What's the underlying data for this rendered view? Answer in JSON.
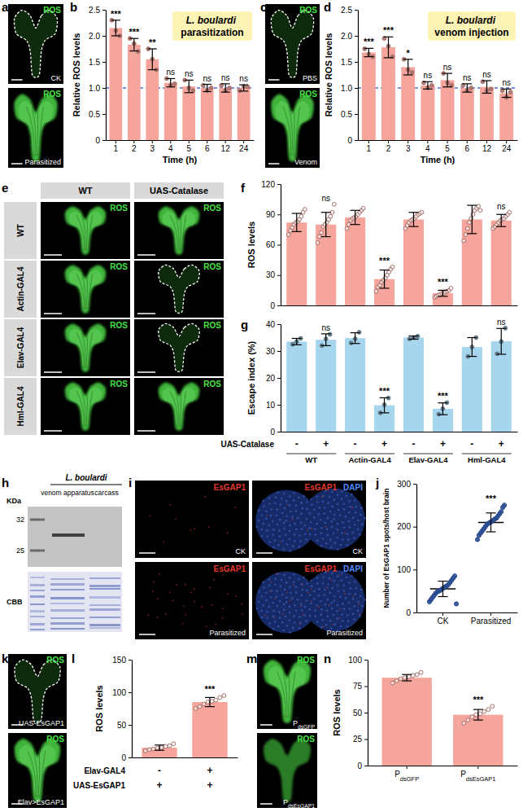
{
  "chart_data": [
    {
      "type": "bar",
      "annotation": "L. boulardi parasitization",
      "xlabel": "Time (h)",
      "ylabel": "Relative ROS levels",
      "categories": [
        "1",
        "2",
        "3",
        "4",
        "5",
        "6",
        "12",
        "24"
      ],
      "values": [
        2.15,
        1.83,
        1.55,
        1.1,
        1.03,
        1.0,
        1.0,
        1.0
      ],
      "errors": [
        0.15,
        0.12,
        0.2,
        0.08,
        0.12,
        0.07,
        0.08,
        0.06
      ],
      "points": [
        [
          2.3,
          2.1,
          2.0
        ],
        [
          1.95,
          1.85,
          1.7
        ],
        [
          1.75,
          1.55,
          1.35
        ],
        [
          1.18,
          1.05,
          1.08
        ],
        [
          1.15,
          1.0,
          0.95
        ],
        [
          1.05,
          0.95,
          1.0
        ],
        [
          1.05,
          0.95,
          1.0
        ],
        [
          0.95,
          1.03,
          1.02
        ]
      ],
      "significance": [
        "***",
        "***",
        "**",
        "ns",
        "ns",
        "ns",
        "ns",
        "ns"
      ],
      "reference_line": 1,
      "color": "#f6a59c",
      "ylim": [
        0,
        2.5
      ],
      "yticks": [
        0,
        0.5,
        {
          "value": 1,
          "label": "1.0"
        },
        1.5,
        {
          "value": 2,
          "label": "2.0"
        },
        2.5
      ]
    },
    {
      "type": "bar",
      "annotation": "L. boulardi venom injection",
      "xlabel": "Time (h)",
      "ylabel": "Relative ROS levels",
      "categories": [
        "1",
        "2",
        "3",
        "4",
        "5",
        "6",
        "12",
        "24"
      ],
      "values": [
        1.68,
        1.78,
        1.4,
        1.05,
        1.15,
        1.0,
        1.02,
        0.9
      ],
      "errors": [
        0.08,
        0.2,
        0.15,
        0.07,
        0.13,
        0.08,
        0.12,
        0.08
      ],
      "points": [
        [
          1.75,
          1.65,
          1.6
        ],
        [
          1.95,
          1.8,
          1.6
        ],
        [
          1.55,
          1.35,
          1.3
        ],
        [
          1.1,
          1.0,
          1.05
        ],
        [
          1.28,
          1.1,
          1.05
        ],
        [
          1.05,
          0.95,
          1.0
        ],
        [
          1.12,
          0.95,
          0.98
        ],
        [
          0.95,
          0.82,
          0.92
        ]
      ],
      "significance": [
        "***",
        "***",
        "*",
        "ns",
        "ns",
        "ns",
        "ns",
        "ns"
      ],
      "reference_line": 1,
      "color": "#f6a59c",
      "ylim": [
        0,
        2.5
      ],
      "yticks": [
        0,
        0.5,
        {
          "value": 1,
          "label": "1.0"
        },
        1.5,
        {
          "value": 2,
          "label": "2.0"
        },
        2.5
      ]
    },
    {
      "type": "bar",
      "ylabel": "ROS levels",
      "categories": [
        null,
        null,
        null,
        null,
        null,
        null,
        null,
        null
      ],
      "values": [
        82,
        80,
        87,
        26,
        85,
        12,
        85,
        84
      ],
      "errors": [
        9,
        12,
        7,
        9,
        7,
        3,
        14,
        6
      ],
      "points": [
        [
          70,
          74,
          77,
          80,
          82,
          83,
          85,
          88,
          92,
          95
        ],
        [
          62,
          68,
          72,
          78,
          80,
          82,
          85,
          88,
          92,
          100
        ],
        [
          76,
          80,
          84,
          86,
          87,
          88,
          90,
          92,
          94,
          96
        ],
        [
          14,
          18,
          20,
          23,
          25,
          27,
          30,
          33,
          36,
          38
        ],
        [
          76,
          79,
          82,
          84,
          85,
          86,
          88,
          90,
          91,
          92
        ],
        [
          8,
          9,
          10,
          11,
          12,
          12,
          13,
          14,
          15,
          17
        ],
        [
          64,
          70,
          76,
          82,
          86,
          90,
          94,
          96,
          98,
          94
        ],
        [
          76,
          78,
          80,
          82,
          84,
          85,
          86,
          88,
          90,
          92
        ]
      ],
      "significance": [
        null,
        "ns",
        null,
        "***",
        null,
        "***",
        null,
        "ns"
      ],
      "color": "#f6a59c",
      "ylim": [
        0,
        120
      ],
      "yticks": [
        0,
        30,
        60,
        90,
        120
      ]
    },
    {
      "type": "bar",
      "ylabel": "Escape index (%)",
      "categories": [
        null,
        null,
        null,
        null,
        null,
        null,
        null,
        null
      ],
      "values": [
        33.5,
        34.2,
        34.8,
        9.8,
        35,
        8.5,
        31.5,
        33.6
      ],
      "errors": [
        1.2,
        2.2,
        2.0,
        2.8,
        0.6,
        2.2,
        3.5,
        4.8
      ],
      "points": [
        [
          32.5,
          33.5,
          34.7
        ],
        [
          32,
          34.5,
          36.2
        ],
        [
          33,
          34.5,
          37
        ],
        [
          7,
          10,
          12.5
        ],
        [
          34.5,
          35,
          35.5
        ],
        [
          6.5,
          8.5,
          10.8
        ],
        [
          28,
          31.5,
          35
        ],
        [
          29,
          33.5,
          38.5
        ]
      ],
      "significance": [
        null,
        "ns",
        null,
        "***",
        null,
        "***",
        null,
        "ns"
      ],
      "table": [
        {
          "name": "UAS-Catalase",
          "values": [
            "-",
            "+",
            "-",
            "+",
            "-",
            "+",
            "-",
            "+"
          ]
        }
      ],
      "groups": [
        "WT",
        "Actin-GAL4",
        "Elav-GAL4",
        "Hml-GAL4"
      ],
      "color": "#a6d6ee",
      "ylim": [
        0,
        40
      ],
      "yticks": [
        0,
        10,
        20,
        30,
        40
      ]
    },
    {
      "type": "dot",
      "ylabel": "Number of EsGAP1 spots/host brain",
      "categories": [
        "CK",
        "Parasitized"
      ],
      "values": [
        55,
        210
      ],
      "errors": [
        18,
        22
      ],
      "points": [
        [
          25,
          30,
          35,
          40,
          45,
          48,
          50,
          52,
          55,
          57,
          60,
          62,
          65,
          70,
          75,
          80,
          85,
          20
        ],
        [
          170,
          180,
          185,
          190,
          195,
          200,
          205,
          208,
          210,
          212,
          215,
          218,
          220,
          225,
          230,
          235,
          245,
          250
        ]
      ],
      "significance": [
        null,
        "***"
      ],
      "color": "#3d6fd6",
      "ylim": [
        0,
        300
      ],
      "yticks": [
        0,
        100,
        200,
        300
      ]
    },
    {
      "type": "bar",
      "ylabel": "ROS levels",
      "categories": [
        null,
        null
      ],
      "values": [
        15,
        85
      ],
      "errors": [
        4,
        7
      ],
      "points": [
        [
          10,
          12,
          13,
          14,
          15,
          17,
          18,
          21
        ],
        [
          75,
          78,
          82,
          85,
          86,
          88,
          92,
          95
        ]
      ],
      "significance": [
        null,
        "***"
      ],
      "table": [
        {
          "name": "Elav-GAL4",
          "values": [
            "-",
            "+"
          ]
        },
        {
          "name": "UAS-EsGAP1",
          "values": [
            "+",
            "+"
          ]
        }
      ],
      "color": "#f6a59c",
      "ylim": [
        0,
        150
      ],
      "yticks": [
        0,
        50,
        100,
        150
      ]
    },
    {
      "type": "bar",
      "ylabel": "ROS levels",
      "categories": [
        "PdsGFP",
        "PdsEsGAP1"
      ],
      "values": [
        83,
        48
      ],
      "errors": [
        3,
        5
      ],
      "points": [
        [
          78,
          80,
          82,
          83,
          84,
          85,
          86,
          88
        ],
        [
          40,
          43,
          46,
          48,
          49,
          51,
          53,
          56
        ]
      ],
      "significance": [
        null,
        "***"
      ],
      "color": "#f6a59c",
      "ylim": [
        0,
        100
      ],
      "yticks": [
        0,
        25,
        50,
        75,
        100
      ]
    }
  ],
  "figure": {
    "panel_labels": [
      "a",
      "b",
      "c",
      "d",
      "e",
      "f",
      "g",
      "h",
      "i",
      "j",
      "k",
      "l",
      "m",
      "n"
    ],
    "a": {
      "channel": "ROS",
      "images": [
        "CK",
        "Parasitized"
      ]
    },
    "c": {
      "channel": "ROS",
      "images": [
        "PBS",
        "Venom"
      ]
    },
    "e": {
      "channel": "ROS",
      "columns": [
        "WT",
        "UAS-Catalase"
      ],
      "rows": [
        "WT",
        "Actin-GAL4",
        "Elav-GAL4",
        "Hml-GAL4"
      ]
    },
    "h": {
      "unit": "KDa",
      "markers": [
        32,
        25
      ],
      "group": "L. boulardi",
      "lanes": [
        "venom apparatus",
        "carcass"
      ],
      "stain": "CBB"
    },
    "i": {
      "channels": [
        "EsGAP1",
        "DAPI"
      ],
      "rows": [
        "CK",
        "Parasitized"
      ]
    },
    "k": {
      "channel": "ROS",
      "images": [
        "UAS-EsGAP1",
        "Elav>EsGAP1"
      ]
    },
    "m": {
      "channel": "ROS",
      "images": [
        "PdsGFP",
        "PdsEsGAP1"
      ]
    }
  }
}
